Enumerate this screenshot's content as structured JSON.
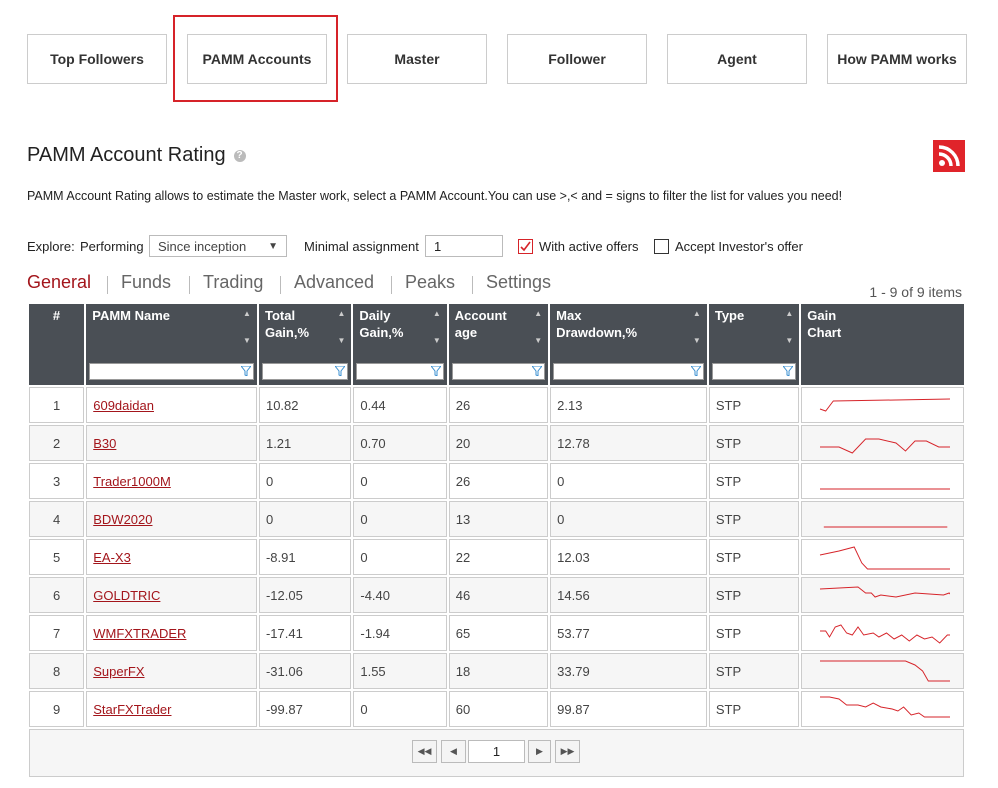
{
  "nav": {
    "tabs": [
      "Top Followers",
      "PAMM Accounts",
      "Master",
      "Follower",
      "Agent",
      "How PAMM works"
    ],
    "active": 1
  },
  "header": {
    "title": "PAMM Account Rating",
    "description": "PAMM Account Rating allows to estimate the Master work, select a PAMM Account.You can use >,< and = signs to filter the list for values you need!"
  },
  "filters": {
    "explore_label": "Explore:",
    "performing_label": "Performing",
    "period": "Since inception",
    "min_label": "Minimal assignment",
    "min_value": "1",
    "active_offers": {
      "label": "With active offers",
      "checked": true
    },
    "investor_offer": {
      "label": "Accept Investor's offer",
      "checked": false
    }
  },
  "subtabs": {
    "items": [
      "General",
      "Funds",
      "Trading",
      "Advanced",
      "Peaks",
      "Settings"
    ],
    "active": 0
  },
  "items_info": "1 - 9 of 9 items",
  "table": {
    "columns": [
      "#",
      "PAMM Name",
      "Total Gain,%",
      "Daily Gain,%",
      "Account age",
      "Max Drawdown,%",
      "Type",
      "Gain Chart"
    ],
    "rows": [
      [
        "1",
        "609daidan",
        "10.82",
        "0.44",
        "26",
        "2.13",
        "STP"
      ],
      [
        "2",
        "B30",
        "1.21",
        "0.70",
        "20",
        "12.78",
        "STP"
      ],
      [
        "3",
        "Trader1000M",
        "0",
        "0",
        "26",
        "0",
        "STP"
      ],
      [
        "4",
        "BDW2020",
        "0",
        "0",
        "13",
        "0",
        "STP"
      ],
      [
        "5",
        "EA-X3",
        "-8.91",
        "0",
        "22",
        "12.03",
        "STP"
      ],
      [
        "6",
        "GOLDTRIC",
        "-12.05",
        "-4.40",
        "46",
        "14.56",
        "STP"
      ],
      [
        "7",
        "WMFXTRADER",
        "-17.41",
        "-1.94",
        "65",
        "53.77",
        "STP"
      ],
      [
        "8",
        "SuperFX",
        "-31.06",
        "1.55",
        "18",
        "33.79",
        "STP"
      ],
      [
        "9",
        "StarFXTrader",
        "-99.87",
        "0",
        "60",
        "99.87",
        "STP"
      ]
    ]
  },
  "pager": {
    "page": "1"
  }
}
